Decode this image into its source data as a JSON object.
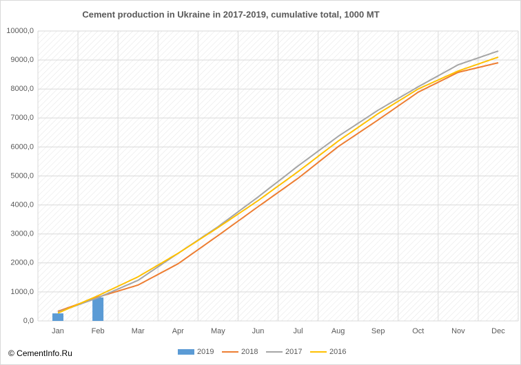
{
  "chart_data": {
    "type": "bar_line",
    "title": "Cement production in Ukraine in 2017-2019,  cumulative total, 1000 MT",
    "watermark": "© CementInfo.Ru",
    "categories": [
      "Jan",
      "Feb",
      "Mar",
      "Apr",
      "May",
      "Jun",
      "Jul",
      "Aug",
      "Sep",
      "Oct",
      "Nov",
      "Dec"
    ],
    "series": [
      {
        "name": "2019",
        "type": "bar",
        "color": "#5b9bd5",
        "values": [
          260,
          810,
          null,
          null,
          null,
          null,
          null,
          null,
          null,
          null,
          null,
          null
        ]
      },
      {
        "name": "2018",
        "type": "line",
        "color": "#ed7d31",
        "values": [
          330,
          820,
          1235,
          1970,
          2945,
          3940,
          4920,
          6010,
          6935,
          7890,
          8575,
          8905
        ]
      },
      {
        "name": "2017",
        "type": "line",
        "color": "#a5a5a5",
        "values": [
          300,
          800,
          1400,
          2330,
          3250,
          4275,
          5345,
          6365,
          7270,
          8075,
          8835,
          9310
        ]
      },
      {
        "name": "2016",
        "type": "line",
        "color": "#ffc000",
        "values": [
          270,
          870,
          1520,
          2330,
          3220,
          4150,
          5150,
          6200,
          7150,
          8000,
          8620,
          9100
        ]
      }
    ],
    "ylim": [
      0,
      10000
    ],
    "yticks": [
      {
        "value": 0,
        "label": "0,0"
      },
      {
        "value": 1000,
        "label": "1000,0"
      },
      {
        "value": 2000,
        "label": "2000,0"
      },
      {
        "value": 3000,
        "label": "3000,0"
      },
      {
        "value": 4000,
        "label": "4000,0"
      },
      {
        "value": 5000,
        "label": "5000,0"
      },
      {
        "value": 6000,
        "label": "6000,0"
      },
      {
        "value": 7000,
        "label": "7000,0"
      },
      {
        "value": 8000,
        "label": "8000,0"
      },
      {
        "value": 9000,
        "label": "9000,0"
      },
      {
        "value": 10000,
        "label": "10000,0"
      }
    ],
    "grid": true,
    "legend": "bottom"
  }
}
